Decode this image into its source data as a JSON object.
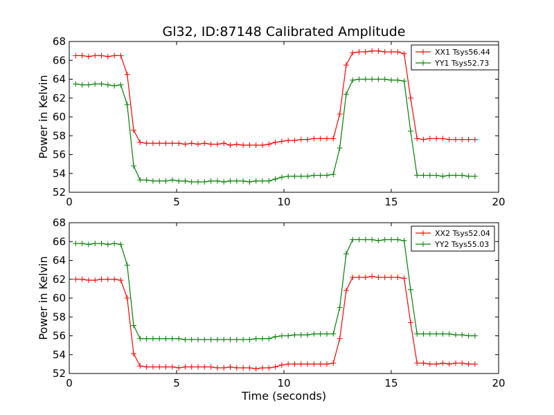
{
  "figure_title": "Gl32, ID:87148 Calibrated Amplitude",
  "xlabel": "Time (seconds)",
  "colors": {
    "red": "#ff0000",
    "green": "#008000"
  },
  "chart_data": [
    {
      "type": "line",
      "title": "Gl32, ID:87148 Calibrated Amplitude",
      "xlabel": "",
      "ylabel": "Power in Kelvin",
      "xlim": [
        0,
        20
      ],
      "ylim": [
        52,
        68
      ],
      "xticks": [
        0,
        5,
        10,
        15,
        20
      ],
      "yticks": [
        52,
        54,
        56,
        58,
        60,
        62,
        64,
        66,
        68
      ],
      "grid": false,
      "legend_position": "top-right",
      "x": [
        0.3,
        0.6,
        0.9,
        1.2,
        1.5,
        1.8,
        2.1,
        2.4,
        2.7,
        3.0,
        3.3,
        3.6,
        3.9,
        4.2,
        4.5,
        4.8,
        5.1,
        5.4,
        5.7,
        6.0,
        6.3,
        6.6,
        6.9,
        7.2,
        7.5,
        7.8,
        8.1,
        8.4,
        8.7,
        9.0,
        9.3,
        9.6,
        9.9,
        10.2,
        10.5,
        10.8,
        11.1,
        11.4,
        11.7,
        12.0,
        12.3,
        12.6,
        12.9,
        13.2,
        13.5,
        13.8,
        14.1,
        14.4,
        14.7,
        15.0,
        15.3,
        15.6,
        15.9,
        16.2,
        16.5,
        16.8,
        17.1,
        17.4,
        17.7,
        18.0,
        18.3,
        18.6,
        18.9
      ],
      "series": [
        {
          "name": "XX1 Tsys56.44",
          "color": "#ff0000",
          "values": [
            66.5,
            66.5,
            66.4,
            66.5,
            66.5,
            66.4,
            66.5,
            66.5,
            64.5,
            58.6,
            57.3,
            57.2,
            57.2,
            57.2,
            57.2,
            57.2,
            57.2,
            57.1,
            57.2,
            57.1,
            57.2,
            57.1,
            57.1,
            57.2,
            57.0,
            57.1,
            57.0,
            57.0,
            57.0,
            57.0,
            57.1,
            57.3,
            57.4,
            57.5,
            57.5,
            57.6,
            57.6,
            57.7,
            57.7,
            57.7,
            57.7,
            60.3,
            65.5,
            66.8,
            66.9,
            66.9,
            67.0,
            67.0,
            66.9,
            66.9,
            66.9,
            66.7,
            62.0,
            57.7,
            57.6,
            57.7,
            57.7,
            57.7,
            57.6,
            57.6,
            57.6,
            57.6,
            57.6
          ]
        },
        {
          "name": "YY1 Tsys52.73",
          "color": "#008000",
          "values": [
            63.5,
            63.4,
            63.4,
            63.5,
            63.5,
            63.4,
            63.3,
            63.4,
            61.3,
            54.8,
            53.3,
            53.3,
            53.2,
            53.2,
            53.2,
            53.3,
            53.2,
            53.2,
            53.1,
            53.1,
            53.1,
            53.2,
            53.2,
            53.1,
            53.2,
            53.2,
            53.2,
            53.1,
            53.2,
            53.2,
            53.2,
            53.4,
            53.6,
            53.7,
            53.7,
            53.7,
            53.7,
            53.8,
            53.8,
            53.8,
            53.9,
            56.7,
            62.4,
            63.9,
            64.0,
            64.0,
            64.0,
            64.0,
            64.0,
            63.9,
            63.9,
            63.8,
            58.5,
            53.8,
            53.8,
            53.8,
            53.8,
            53.7,
            53.8,
            53.8,
            53.8,
            53.7,
            53.7
          ]
        }
      ]
    },
    {
      "type": "line",
      "title": "",
      "xlabel": "Time (seconds)",
      "ylabel": "Power in Kelvin",
      "xlim": [
        0,
        20
      ],
      "ylim": [
        52,
        68
      ],
      "xticks": [
        0,
        5,
        10,
        15,
        20
      ],
      "yticks": [
        52,
        54,
        56,
        58,
        60,
        62,
        64,
        66,
        68
      ],
      "grid": false,
      "legend_position": "top-right",
      "x": [
        0.3,
        0.6,
        0.9,
        1.2,
        1.5,
        1.8,
        2.1,
        2.4,
        2.7,
        3.0,
        3.3,
        3.6,
        3.9,
        4.2,
        4.5,
        4.8,
        5.1,
        5.4,
        5.7,
        6.0,
        6.3,
        6.6,
        6.9,
        7.2,
        7.5,
        7.8,
        8.1,
        8.4,
        8.7,
        9.0,
        9.3,
        9.6,
        9.9,
        10.2,
        10.5,
        10.8,
        11.1,
        11.4,
        11.7,
        12.0,
        12.3,
        12.6,
        12.9,
        13.2,
        13.5,
        13.8,
        14.1,
        14.4,
        14.7,
        15.0,
        15.3,
        15.6,
        15.9,
        16.2,
        16.5,
        16.8,
        17.1,
        17.4,
        17.7,
        18.0,
        18.3,
        18.6,
        18.9
      ],
      "series": [
        {
          "name": "XX2 Tsys52.04",
          "color": "#ff0000",
          "values": [
            62.0,
            62.0,
            61.9,
            61.9,
            62.0,
            62.0,
            62.0,
            61.9,
            60.0,
            54.1,
            52.8,
            52.7,
            52.7,
            52.7,
            52.7,
            52.7,
            52.6,
            52.7,
            52.7,
            52.7,
            52.7,
            52.7,
            52.6,
            52.6,
            52.7,
            52.6,
            52.6,
            52.6,
            52.5,
            52.6,
            52.6,
            52.7,
            52.9,
            53.0,
            53.0,
            53.0,
            53.0,
            53.0,
            53.0,
            53.0,
            53.1,
            55.7,
            60.8,
            62.2,
            62.2,
            62.2,
            62.3,
            62.2,
            62.2,
            62.2,
            62.2,
            62.1,
            57.4,
            53.1,
            53.1,
            53.0,
            53.0,
            53.1,
            53.0,
            53.1,
            53.1,
            53.0,
            53.0
          ]
        },
        {
          "name": "YY2 Tsys55.03",
          "color": "#008000",
          "values": [
            65.8,
            65.8,
            65.7,
            65.8,
            65.8,
            65.7,
            65.8,
            65.7,
            63.5,
            57.1,
            55.7,
            55.7,
            55.7,
            55.7,
            55.7,
            55.7,
            55.7,
            55.6,
            55.6,
            55.6,
            55.6,
            55.6,
            55.6,
            55.6,
            55.6,
            55.6,
            55.6,
            55.6,
            55.7,
            55.7,
            55.7,
            55.9,
            56.0,
            56.0,
            56.1,
            56.1,
            56.1,
            56.2,
            56.2,
            56.2,
            56.2,
            59.0,
            64.7,
            66.2,
            66.2,
            66.2,
            66.2,
            66.1,
            66.2,
            66.2,
            66.2,
            66.1,
            60.9,
            56.2,
            56.2,
            56.2,
            56.2,
            56.2,
            56.2,
            56.1,
            56.1,
            56.0,
            56.0
          ]
        }
      ]
    }
  ]
}
